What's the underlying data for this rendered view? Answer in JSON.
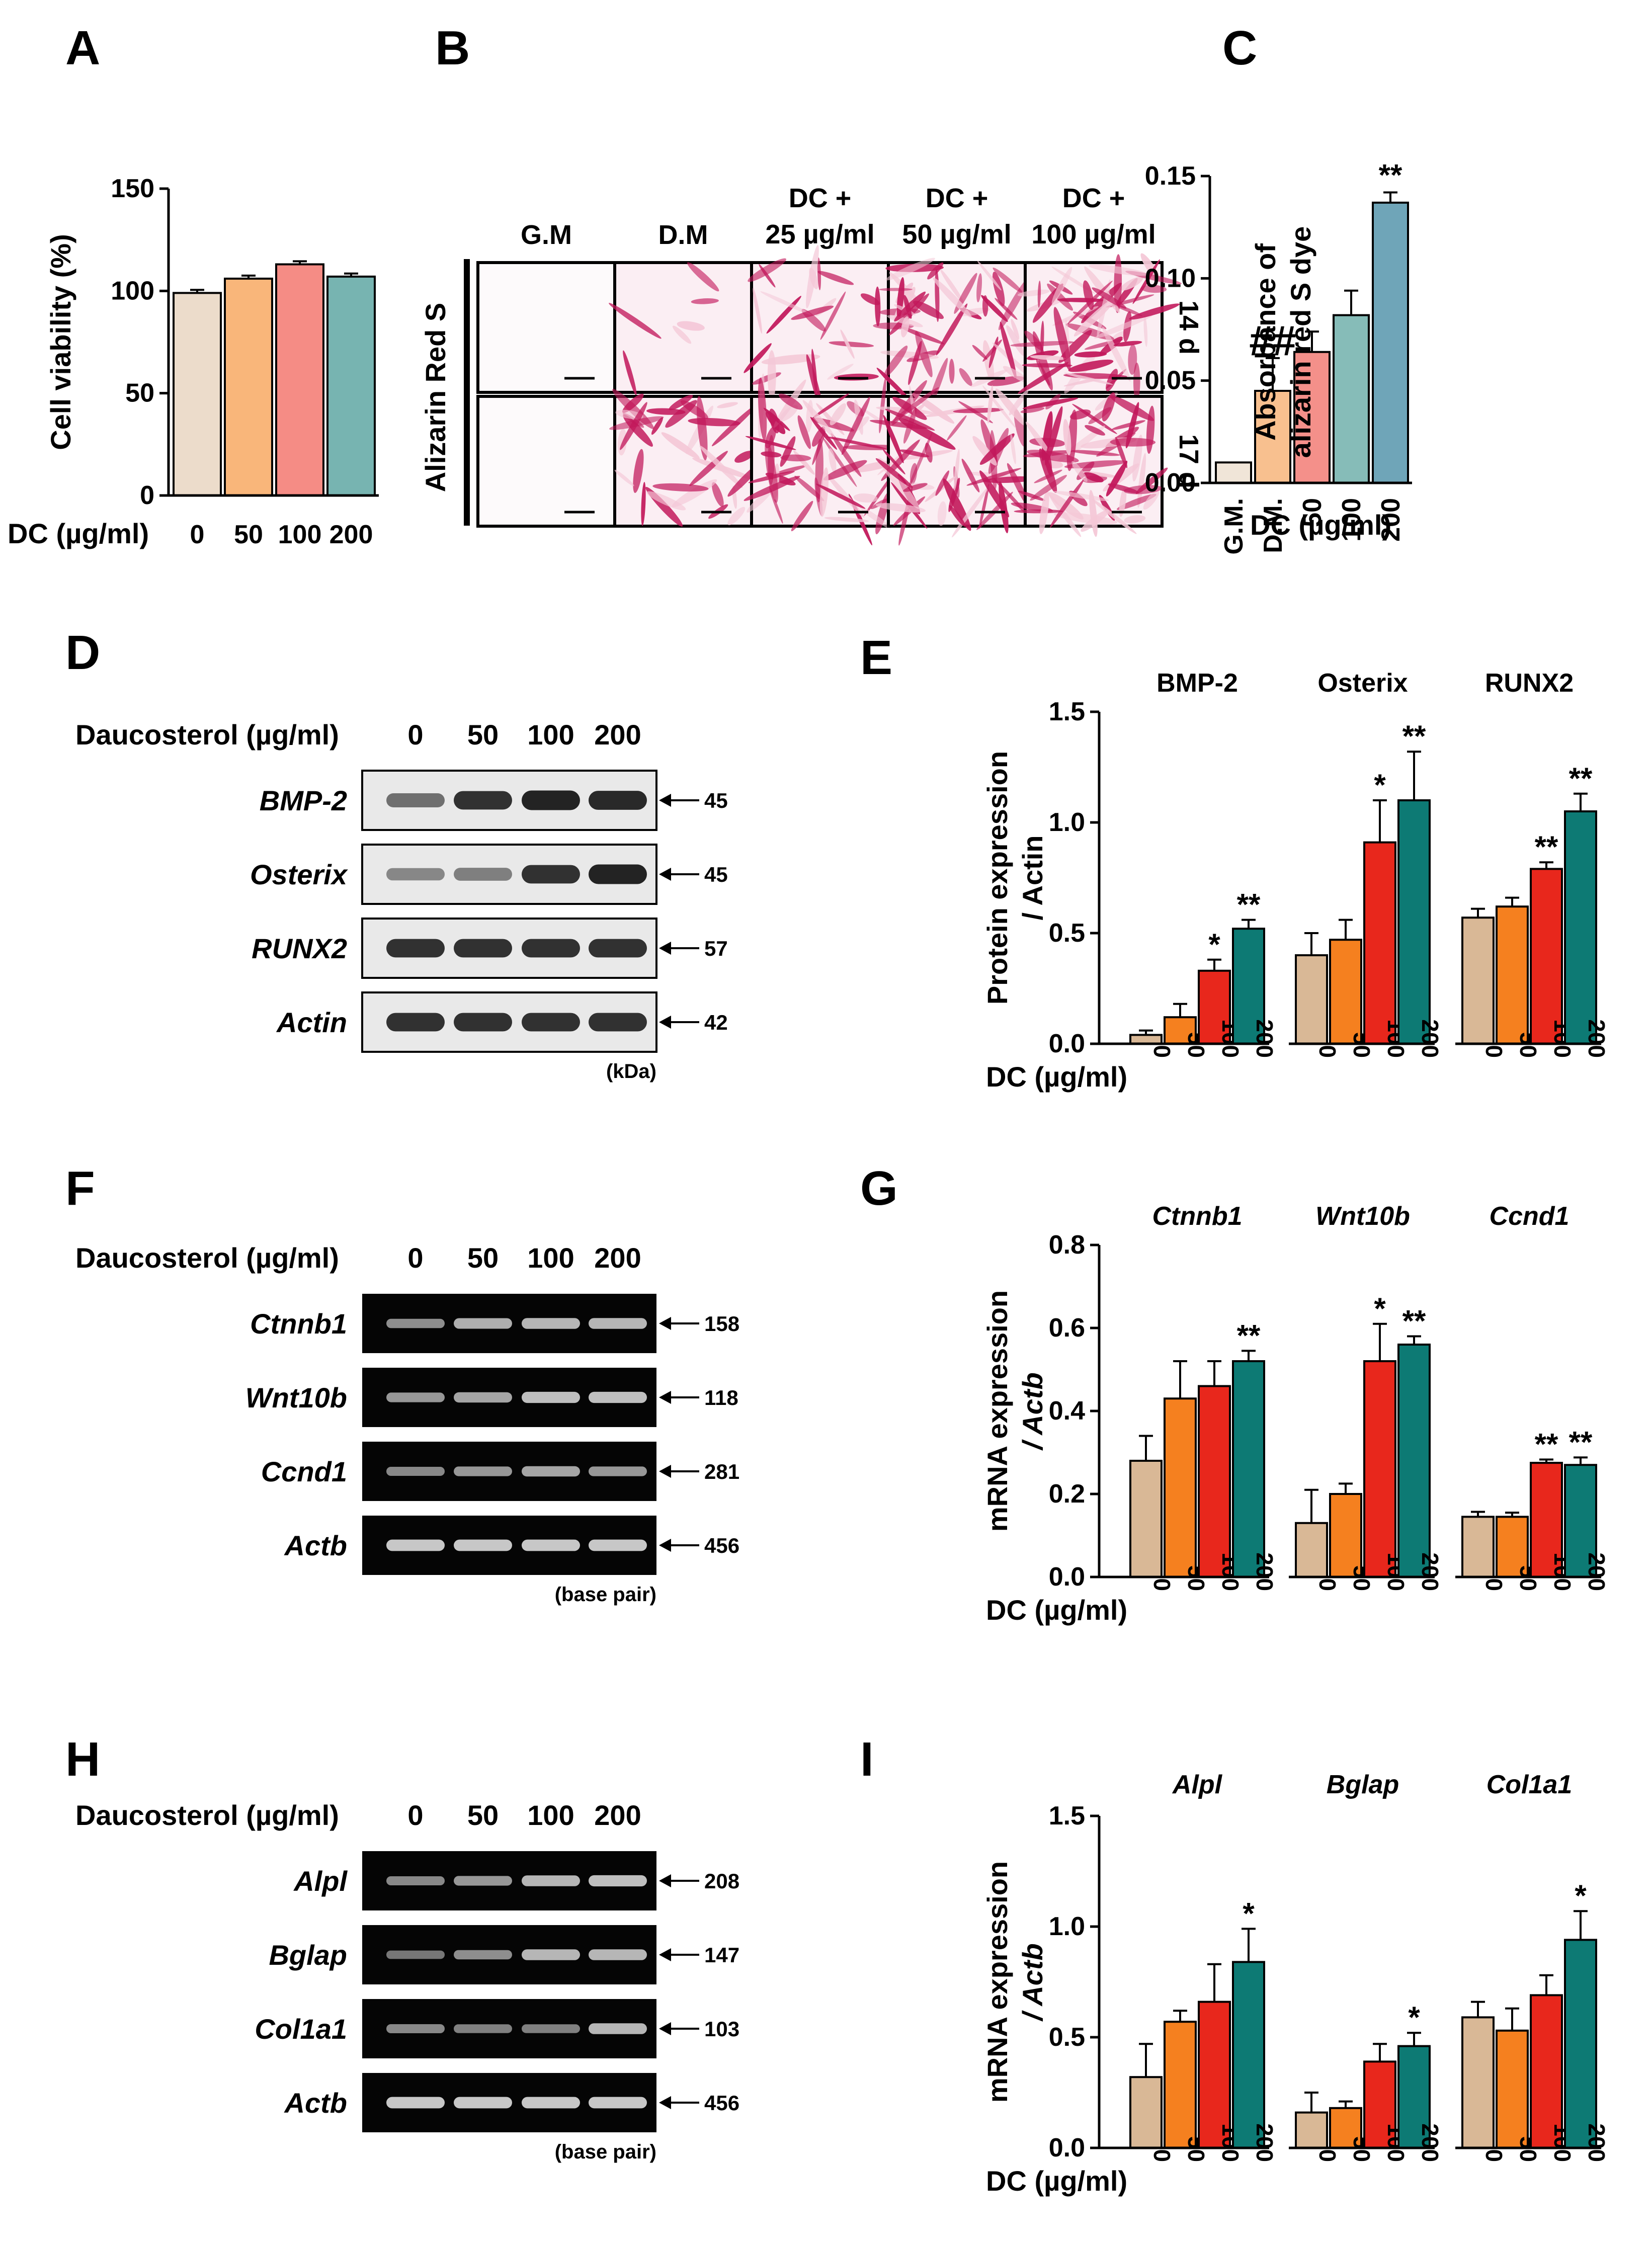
{
  "colors": {
    "g0": "#d9b896",
    "g50": "#f5801f",
    "g100": "#e8271c",
    "g200": "#0d7a74",
    "a0": "#ecdccb",
    "a50": "#f9b67a",
    "a100": "#f58c85",
    "a200": "#77b4b1",
    "c_gm": "#f0e5d8",
    "c_dm": "#f8c08f",
    "c_50": "#f4908a",
    "c_100": "#86bcb8",
    "c_200": "#6fa5b8",
    "blot_bg": "#e9e9e9",
    "blot_band": "#1a1a1a",
    "gel_bg": "#050505",
    "gel_band": "#d6d6d6",
    "stain": "#c2185b",
    "stain_light": "#f4c8d7"
  },
  "panel_labels": [
    "A",
    "B",
    "C",
    "D",
    "E",
    "F",
    "G",
    "H",
    "I"
  ],
  "doses_short": [
    "0",
    "50",
    "100",
    "200"
  ],
  "panelB": {
    "columns": [
      "G.M",
      "D.M",
      "DC +\n25 µg/ml",
      "DC +\n50 µg/ml",
      "DC +\n100 µg/ml"
    ],
    "row_label": "Alizarin Red S",
    "times": [
      "14 d",
      "17 d"
    ],
    "stain_density": [
      [
        0,
        0.08,
        0.35,
        0.75,
        0.85
      ],
      [
        0,
        0.5,
        0.85,
        0.9,
        0.92
      ]
    ]
  },
  "panelD": {
    "header": "Daucosterol (µg/ml)",
    "doses": [
      "0",
      "50",
      "100",
      "200"
    ],
    "rows": [
      {
        "name": "BMP-2",
        "size": "45",
        "intensity": [
          0.45,
          0.85,
          0.95,
          0.9
        ]
      },
      {
        "name": "Osterix",
        "size": "45",
        "intensity": [
          0.3,
          0.35,
          0.85,
          0.95
        ]
      },
      {
        "name": "RUNX2",
        "size": "57",
        "intensity": [
          0.85,
          0.85,
          0.85,
          0.85
        ]
      },
      {
        "name": "Actin",
        "size": "42",
        "intensity": [
          0.85,
          0.85,
          0.85,
          0.85
        ]
      }
    ],
    "footer": "(kDa)"
  },
  "panelF": {
    "header": "Daucosterol (µg/ml)",
    "doses": [
      "0",
      "50",
      "100",
      "200"
    ],
    "rows": [
      {
        "name": "Ctnnb1",
        "size": "158",
        "intensity": [
          0.55,
          0.75,
          0.8,
          0.8
        ]
      },
      {
        "name": "Wnt10b",
        "size": "118",
        "intensity": [
          0.6,
          0.7,
          0.85,
          0.85
        ]
      },
      {
        "name": "Ccnd1",
        "size": "281",
        "intensity": [
          0.5,
          0.6,
          0.7,
          0.6
        ]
      },
      {
        "name": "Actb",
        "size": "456",
        "intensity": [
          0.9,
          0.9,
          0.9,
          0.9
        ]
      }
    ],
    "footer": "(base pair)"
  },
  "panelH": {
    "header": "Daucosterol (µg/ml)",
    "doses": [
      "0",
      "50",
      "100",
      "200"
    ],
    "rows": [
      {
        "name": "Alpl",
        "size": "208",
        "intensity": [
          0.5,
          0.6,
          0.8,
          0.85
        ]
      },
      {
        "name": "Bglap",
        "size": "147",
        "intensity": [
          0.4,
          0.55,
          0.8,
          0.8
        ]
      },
      {
        "name": "Col1a1",
        "size": "103",
        "intensity": [
          0.5,
          0.45,
          0.45,
          0.8
        ]
      },
      {
        "name": "Actb",
        "size": "456",
        "intensity": [
          0.9,
          0.9,
          0.9,
          0.9
        ]
      }
    ],
    "footer": "(base pair)"
  },
  "chart_data": [
    {
      "id": "A",
      "type": "bar",
      "ylabel": "Cell viability (%)",
      "xlabel": "DC (µg/ml)",
      "categories": [
        "0",
        "50",
        "100",
        "200"
      ],
      "values": [
        99,
        106,
        113,
        107
      ],
      "errors": [
        1.5,
        1.5,
        1.5,
        1.5
      ],
      "ylim": [
        0,
        150
      ],
      "yticks": [
        0,
        50,
        100,
        150
      ],
      "colors": [
        "#ecdccb",
        "#f9b67a",
        "#f58c85",
        "#77b4b1"
      ],
      "stars": [
        "",
        "",
        "",
        ""
      ]
    },
    {
      "id": "C",
      "type": "bar",
      "ylabel": "Absorbance of\nalizarin red S dye",
      "xlabel": "DC (µg/ml)",
      "categories": [
        "G.M.",
        "D.M.",
        "50",
        "100",
        "200"
      ],
      "values": [
        0.01,
        0.045,
        0.064,
        0.082,
        0.137
      ],
      "errors": [
        0,
        0.016,
        0.01,
        0.012,
        0.005
      ],
      "ylim": [
        0,
        0.15
      ],
      "yticks": [
        "0.00",
        "0.05",
        "0.10",
        "0.15"
      ],
      "colors": [
        "#f0e5d8",
        "#f8c08f",
        "#f4908a",
        "#86bcb8",
        "#6fa5b8"
      ],
      "stars": [
        "",
        "##",
        "",
        "",
        "**"
      ]
    },
    {
      "id": "E",
      "type": "bar",
      "ylabel": "Protein expression\n/ Actin",
      "xlabel": "DC (µg/ml)",
      "groups": [
        "BMP-2",
        "Osterix",
        "RUNX2"
      ],
      "group_italic": false,
      "categories": [
        "0",
        "50",
        "100",
        "200"
      ],
      "series": [
        {
          "name": "BMP-2",
          "values": [
            0.04,
            0.12,
            0.33,
            0.52
          ],
          "errors": [
            0.02,
            0.06,
            0.05,
            0.04
          ],
          "stars": [
            "",
            "",
            "*",
            "**"
          ]
        },
        {
          "name": "Osterix",
          "values": [
            0.4,
            0.47,
            0.91,
            1.1
          ],
          "errors": [
            0.1,
            0.09,
            0.19,
            0.22
          ],
          "stars": [
            "",
            "",
            "*",
            "**"
          ]
        },
        {
          "name": "RUNX2",
          "values": [
            0.57,
            0.62,
            0.79,
            1.05
          ],
          "errors": [
            0.04,
            0.04,
            0.03,
            0.08
          ],
          "stars": [
            "",
            "",
            "**",
            "**"
          ]
        }
      ],
      "ylim": [
        0,
        1.5
      ],
      "yticks": [
        "0.0",
        "0.5",
        "1.0",
        "1.5"
      ],
      "colors": [
        "#d9b896",
        "#f5801f",
        "#e8271c",
        "#0d7a74"
      ]
    },
    {
      "id": "G",
      "type": "bar",
      "ylabel": "mRNA expression\n/ Actb",
      "xlabel": "DC (µg/ml)",
      "groups": [
        "Ctnnb1",
        "Wnt10b",
        "Ccnd1"
      ],
      "group_italic": true,
      "categories": [
        "0",
        "50",
        "100",
        "200"
      ],
      "series": [
        {
          "name": "Ctnnb1",
          "values": [
            0.28,
            0.43,
            0.46,
            0.52
          ],
          "errors": [
            0.06,
            0.09,
            0.06,
            0.025
          ],
          "stars": [
            "",
            "",
            "",
            "**"
          ]
        },
        {
          "name": "Wnt10b",
          "values": [
            0.13,
            0.2,
            0.52,
            0.56
          ],
          "errors": [
            0.08,
            0.025,
            0.09,
            0.02
          ],
          "stars": [
            "",
            "",
            "*",
            "**"
          ]
        },
        {
          "name": "Ccnd1",
          "values": [
            0.145,
            0.145,
            0.275,
            0.27
          ],
          "errors": [
            0.012,
            0.01,
            0.008,
            0.018
          ],
          "stars": [
            "",
            "",
            "**",
            "**"
          ]
        }
      ],
      "ylim": [
        0,
        0.8
      ],
      "yticks": [
        "0.0",
        "0.2",
        "0.4",
        "0.6",
        "0.8"
      ],
      "colors": [
        "#d9b896",
        "#f5801f",
        "#e8271c",
        "#0d7a74"
      ]
    },
    {
      "id": "I",
      "type": "bar",
      "ylabel": "mRNA expression\n/ Actb",
      "xlabel": "DC (µg/ml)",
      "groups": [
        "Alpl",
        "Bglap",
        "Col1a1"
      ],
      "group_italic": true,
      "categories": [
        "0",
        "50",
        "100",
        "200"
      ],
      "series": [
        {
          "name": "Alpl",
          "values": [
            0.32,
            0.57,
            0.66,
            0.84
          ],
          "errors": [
            0.15,
            0.05,
            0.17,
            0.15
          ],
          "stars": [
            "",
            "",
            "",
            "*"
          ]
        },
        {
          "name": "Bglap",
          "values": [
            0.16,
            0.18,
            0.39,
            0.46
          ],
          "errors": [
            0.09,
            0.03,
            0.08,
            0.06
          ],
          "stars": [
            "",
            "",
            "",
            "*"
          ]
        },
        {
          "name": "Col1a1",
          "values": [
            0.59,
            0.53,
            0.69,
            0.94
          ],
          "errors": [
            0.07,
            0.1,
            0.09,
            0.13
          ],
          "stars": [
            "",
            "",
            "",
            "*"
          ]
        }
      ],
      "ylim": [
        0,
        1.5
      ],
      "yticks": [
        "0.0",
        "0.5",
        "1.0",
        "1.5"
      ],
      "colors": [
        "#d9b896",
        "#f5801f",
        "#e8271c",
        "#0d7a74"
      ]
    }
  ]
}
